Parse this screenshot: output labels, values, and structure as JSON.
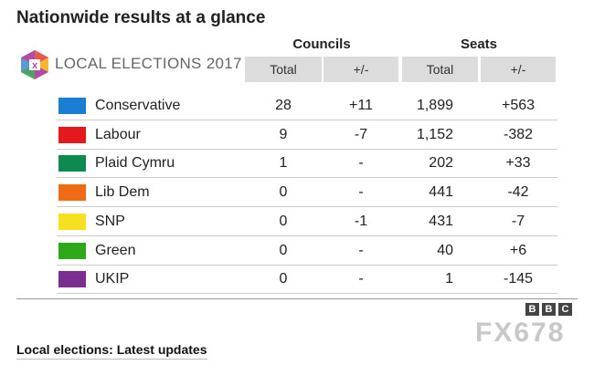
{
  "header": {
    "title": "Nationwide results at a glance",
    "logo": "LOCAL ELECTIONS 2017"
  },
  "table": {
    "groups": [
      "Councils",
      "Seats"
    ],
    "columns": [
      "Total",
      "+/-",
      "Total",
      "+/-"
    ],
    "rows": [
      {
        "name": "Conservative",
        "color": "#1a7fd4",
        "cells": [
          "28",
          "+11",
          "1,899",
          "+563"
        ]
      },
      {
        "name": "Labour",
        "color": "#e4181d",
        "cells": [
          "9",
          "-7",
          "1,152",
          "-382"
        ]
      },
      {
        "name": "Plaid Cymru",
        "color": "#0e8a4f",
        "cells": [
          "1",
          "-",
          "202",
          "+33"
        ]
      },
      {
        "name": "Lib Dem",
        "color": "#ee6b14",
        "cells": [
          "0",
          "-",
          "441",
          "-42"
        ]
      },
      {
        "name": "SNP",
        "color": "#f7e01f",
        "cells": [
          "0",
          "-1",
          "431",
          "-7"
        ]
      },
      {
        "name": "Green",
        "color": "#2ea71b",
        "cells": [
          "0",
          "-",
          "40",
          "+6"
        ]
      },
      {
        "name": "UKIP",
        "color": "#7a2f8f",
        "cells": [
          "0",
          "-",
          "1",
          "-145"
        ]
      }
    ]
  },
  "branding": {
    "bbc": [
      "B",
      "B",
      "C"
    ],
    "watermark": "FX678"
  },
  "footer": {
    "link": "Local elections: Latest updates"
  }
}
